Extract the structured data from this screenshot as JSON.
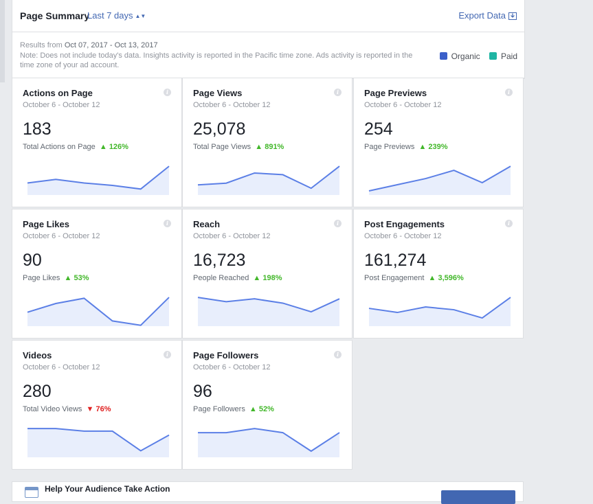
{
  "header": {
    "title": "Page Summary",
    "range_label": "Last 7 days",
    "export_label": "Export Data"
  },
  "note": {
    "results_prefix": "Results from",
    "results_range": "Oct 07, 2017 - Oct 13, 2017",
    "text": "Note: Does not include today's data. Insights activity is reported in the Pacific time zone. Ads activity is reported in the time zone of your ad account."
  },
  "legend": [
    {
      "label": "Organic",
      "color": "#3b5fc9"
    },
    {
      "label": "Paid",
      "color": "#1fb5a3"
    }
  ],
  "cards": [
    {
      "title": "Actions on Page",
      "dates": "October 6 - October 12",
      "value": "183",
      "sub_label": "Total Actions on Page",
      "change": "126%",
      "direction": "up",
      "trend": [
        5,
        6.5,
        5,
        4,
        2.5,
        12
      ]
    },
    {
      "title": "Page Views",
      "dates": "October 6 - October 12",
      "value": "25,078",
      "sub_label": "Total Page Views",
      "change": "891%",
      "direction": "up",
      "trend": [
        3,
        3.5,
        6.5,
        6,
        2,
        8.5
      ]
    },
    {
      "title": "Page Previews",
      "dates": "October 6 - October 12",
      "value": "254",
      "sub_label": "Page Previews",
      "change": "239%",
      "direction": "up",
      "trend": [
        2,
        5,
        8,
        12,
        6,
        14
      ]
    },
    {
      "title": "Page Likes",
      "dates": "October 6 - October 12",
      "value": "90",
      "sub_label": "Page Likes",
      "change": "53%",
      "direction": "up",
      "trend": [
        8,
        13,
        16,
        3,
        0.5,
        16.5
      ]
    },
    {
      "title": "Reach",
      "dates": "October 6 - October 12",
      "value": "16,723",
      "sub_label": "People Reached",
      "change": "198%",
      "direction": "up",
      "trend": [
        20,
        17,
        19,
        16,
        10,
        19
      ]
    },
    {
      "title": "Post Engagements",
      "dates": "October 6 - October 12",
      "value": "161,274",
      "sub_label": "Post Engagement",
      "change": "3,596%",
      "direction": "up",
      "trend": [
        13,
        10,
        14,
        12,
        6,
        21
      ]
    },
    {
      "title": "Videos",
      "dates": "October 6 - October 12",
      "value": "280",
      "sub_label": "Total Video Views",
      "change": "76%",
      "direction": "down",
      "trend": [
        22,
        22,
        20,
        20,
        5,
        17
      ]
    },
    {
      "title": "Page Followers",
      "dates": "October 6 - October 12",
      "value": "96",
      "sub_label": "Page Followers",
      "change": "52%",
      "direction": "up",
      "trend": [
        12,
        12,
        14,
        12,
        3,
        12
      ]
    }
  ],
  "bottom": {
    "title": "Help Your Audience Take Action"
  },
  "colors": {
    "accent": "#4267b2",
    "spark_line": "#5b7fe6",
    "spark_fill": "#e8eefc",
    "up": "#42b72a",
    "down": "#e02020"
  }
}
